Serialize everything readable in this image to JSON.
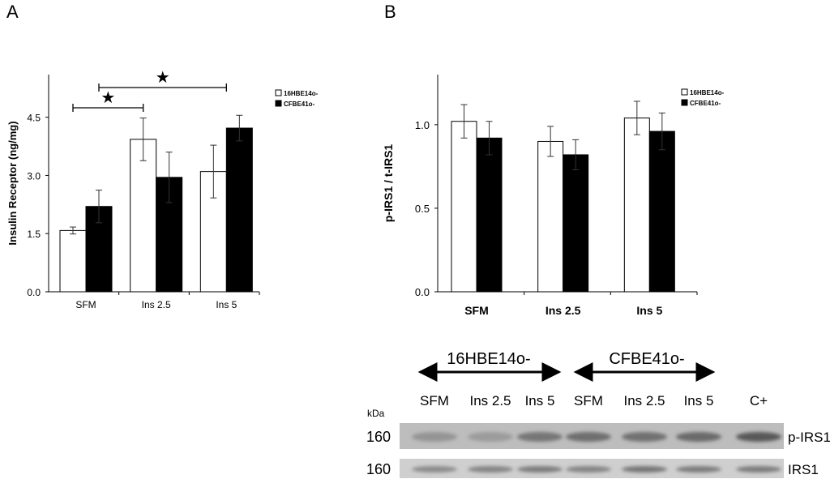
{
  "panels": {
    "a_label": "A",
    "b_label": "B"
  },
  "chart_data": [
    {
      "type": "bar",
      "title": "",
      "xlabel": "",
      "ylabel": "Insulin Receptor (ng/mg)",
      "ylim": [
        0,
        5.6
      ],
      "yticks": [
        0.0,
        1.5,
        3.0,
        4.5
      ],
      "ytick_labels": [
        "0.0",
        "1.5",
        "3.0",
        "4.5"
      ],
      "categories": [
        "SFM",
        "Ins 2.5",
        "Ins 5"
      ],
      "series": [
        {
          "name": "16HBE14o-",
          "color": "#ffffff",
          "values": [
            1.58,
            3.93,
            3.1
          ],
          "errors": [
            0.09,
            0.55,
            0.68
          ]
        },
        {
          "name": "CFBE41o-",
          "color": "#000000",
          "values": [
            2.2,
            2.95,
            4.22
          ],
          "errors": [
            0.42,
            0.65,
            0.33
          ]
        }
      ],
      "significance": [
        {
          "from": "SFM",
          "to": "Ins 2.5",
          "marker": "★"
        },
        {
          "from": "SFM",
          "to": "Ins 5",
          "marker": "★"
        }
      ],
      "legend_position": "top-right"
    },
    {
      "type": "bar",
      "title": "",
      "xlabel": "",
      "ylabel": "p-IRS1 / t-IRS1",
      "ylim": [
        0,
        1.3
      ],
      "yticks": [
        0.0,
        0.5,
        1.0
      ],
      "ytick_labels": [
        "0.0",
        "0.5",
        "1.0"
      ],
      "categories": [
        "SFM",
        "Ins 2.5",
        "Ins 5"
      ],
      "series": [
        {
          "name": "16HBE14o-",
          "color": "#ffffff",
          "values": [
            1.02,
            0.9,
            1.04
          ],
          "errors": [
            0.1,
            0.09,
            0.1
          ]
        },
        {
          "name": "CFBE41o-",
          "color": "#000000",
          "values": [
            0.92,
            0.82,
            0.96
          ],
          "errors": [
            0.1,
            0.09,
            0.11
          ]
        }
      ],
      "legend_position": "top-right"
    }
  ],
  "blot": {
    "groups": [
      {
        "label": "16HBE14o-"
      },
      {
        "label": "CFBE41o-"
      }
    ],
    "kda_label": "kDa",
    "lanes": [
      "SFM",
      "Ins 2.5",
      "Ins 5",
      "SFM",
      "Ins 2.5",
      "Ins 5",
      "C+"
    ],
    "rows": [
      {
        "kda": "160",
        "label": "p-IRS1",
        "intensity": [
          0.35,
          0.3,
          0.55,
          0.6,
          0.58,
          0.62,
          0.75
        ]
      },
      {
        "kda": "160",
        "label": "IRS1",
        "intensity": [
          0.4,
          0.45,
          0.5,
          0.45,
          0.55,
          0.5,
          0.5
        ]
      }
    ]
  }
}
